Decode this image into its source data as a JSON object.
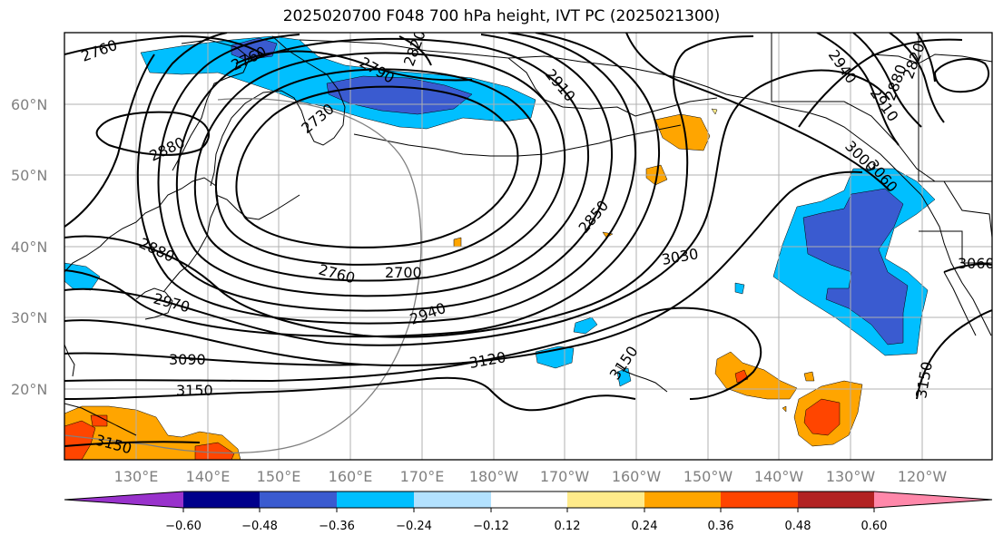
{
  "title": "2025020700 F048 700 hPa height, IVT PC (2025021300)",
  "lat_labels": [
    "60°N",
    "50°N",
    "40°N",
    "30°N",
    "20°N"
  ],
  "lon_labels": [
    "130°E",
    "140°E",
    "150°E",
    "160°E",
    "170°E",
    "180°W",
    "170°W",
    "160°W",
    "150°W",
    "140°W",
    "130°W",
    "120°W"
  ],
  "contour_labels": [
    "2760",
    "2760",
    "2790",
    "2820",
    "2910",
    "2940",
    "2910",
    "2880",
    "2820",
    "2730",
    "2880",
    "3000",
    "3060",
    "2850",
    "3030",
    "3060",
    "2880",
    "2760",
    "2700",
    "2970",
    "2940",
    "3090",
    "3120",
    "3150",
    "3150",
    "3150",
    "3150"
  ],
  "colorbar": {
    "colors": [
      "#9932cc",
      "#00008b",
      "#3a5bd0",
      "#00bfff",
      "#b3e2ff",
      "#ffffff",
      "#ffeb8a",
      "#ffa500",
      "#ff4500",
      "#b22222",
      "#ff88aa"
    ],
    "tick_labels": [
      "−0.60",
      "−0.48",
      "−0.36",
      "−0.24",
      "−0.12",
      "0.12",
      "0.24",
      "0.36",
      "0.48",
      "0.60"
    ]
  },
  "fill_colors": {
    "neg_light": "#00bfff",
    "neg_dark": "#3a5bd0",
    "pos_light": "#ffa500",
    "pos_dark": "#ff4500",
    "pos_pale": "#ffeb8a"
  }
}
